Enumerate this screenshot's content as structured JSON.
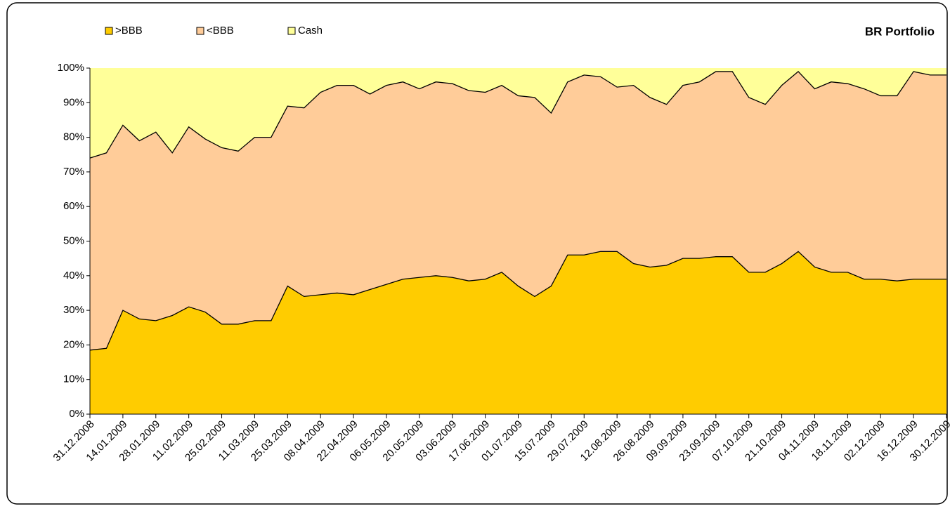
{
  "chart_data": {
    "type": "stacked_area",
    "title": "BR Portfolio",
    "categories": [
      "31.12.2008",
      null,
      "14.01.2009",
      null,
      "28.01.2009",
      null,
      "11.02.2009",
      null,
      "25.02.2009",
      null,
      "11.03.2009",
      null,
      "25.03.2009",
      null,
      "08.04.2009",
      null,
      "22.04.2009",
      null,
      "06.05.2009",
      null,
      "20.05.2009",
      null,
      "03.06.2009",
      null,
      "17.06.2009",
      null,
      "01.07.2009",
      null,
      "15.07.2009",
      null,
      "29.07.2009",
      null,
      "12.08.2009",
      null,
      "26.08.2009",
      null,
      "09.09.2009",
      null,
      "23.09.2009",
      null,
      "07.10.2009",
      null,
      "21.10.2009",
      null,
      "04.11.2009",
      null,
      "18.11.2009",
      null,
      "02.12.2009",
      null,
      "16.12.2009",
      null,
      "30.12.2009"
    ],
    "series": [
      {
        "name": ">BBB",
        "color": "#ffcc00",
        "values": [
          18.5,
          19,
          30,
          27.5,
          27,
          28.5,
          31,
          29.5,
          26,
          26,
          27,
          27,
          37,
          34,
          34.5,
          35,
          34.5,
          36,
          37.5,
          39,
          39.5,
          40,
          39.5,
          38.5,
          39,
          41,
          37,
          34,
          37,
          46,
          46,
          47,
          47,
          43.5,
          42.5,
          43,
          45,
          45,
          45.5,
          45.5,
          41,
          41,
          43.5,
          47,
          42.5,
          41,
          41,
          39,
          39,
          38.5,
          39,
          39,
          39
        ]
      },
      {
        "name": "<BBB",
        "color": "#ffcc99",
        "values": [
          55.5,
          56.5,
          53.5,
          51.5,
          54.5,
          47,
          52,
          50,
          51,
          50,
          53,
          53,
          52,
          54.5,
          58.5,
          60,
          60.5,
          56.5,
          57.5,
          57,
          54.5,
          56,
          56,
          55,
          54,
          54,
          55,
          57.5,
          50,
          50,
          52,
          50.5,
          47.5,
          51.5,
          49,
          46.5,
          50,
          51,
          53.5,
          53.5,
          50.5,
          48.5,
          51.5,
          52,
          51.5,
          55,
          54.5,
          55,
          53,
          53.5,
          60,
          59,
          59
        ]
      },
      {
        "name": "Cash",
        "color": "#ffff99",
        "values": [
          26,
          24.5,
          16.5,
          21,
          18.5,
          24.5,
          17,
          20.5,
          23,
          24,
          20,
          20,
          11,
          11.5,
          7,
          5,
          5,
          7.5,
          5,
          4,
          6,
          4,
          4.5,
          6.5,
          7,
          5,
          8,
          8.5,
          13,
          4,
          2,
          2.5,
          5.5,
          5,
          8.5,
          10.5,
          5,
          4,
          1,
          1,
          8.5,
          10.5,
          5,
          1,
          6,
          4,
          4.5,
          6,
          8,
          8,
          1,
          2,
          2
        ]
      }
    ],
    "ylim": [
      0,
      100
    ],
    "yticks": [
      {
        "value": 0,
        "label": "0%"
      },
      {
        "value": 10,
        "label": "10%"
      },
      {
        "value": 20,
        "label": "20%"
      },
      {
        "value": 30,
        "label": "30%"
      },
      {
        "value": 40,
        "label": "40%"
      },
      {
        "value": 50,
        "label": "50%"
      },
      {
        "value": 60,
        "label": "60%"
      },
      {
        "value": 70,
        "label": "70%"
      },
      {
        "value": 80,
        "label": "80%"
      },
      {
        "value": 90,
        "label": "90%"
      },
      {
        "value": 100,
        "label": "100%"
      }
    ],
    "legend": "top-left",
    "grid": false
  }
}
